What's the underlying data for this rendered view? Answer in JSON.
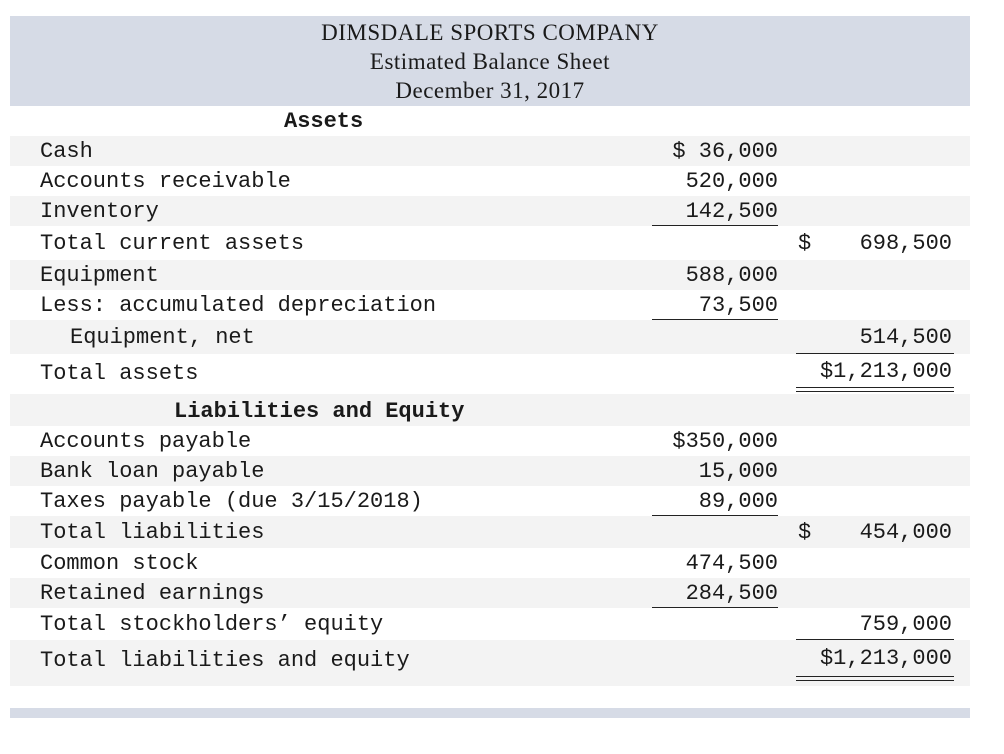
{
  "header": {
    "company": "DIMSDALE SPORTS COMPANY",
    "statement": "Estimated Balance Sheet",
    "date": "December 31, 2017"
  },
  "assets": {
    "heading": "Assets",
    "cash": {
      "label": "Cash",
      "amount": "$ 36,000"
    },
    "accounts_receivable": {
      "label": "Accounts receivable",
      "amount": "520,000"
    },
    "inventory": {
      "label": "Inventory",
      "amount": "142,500"
    },
    "total_current_assets": {
      "label": "Total current assets",
      "dollar": "$",
      "total": "698,500"
    },
    "equipment": {
      "label": "Equipment",
      "amount": "588,000"
    },
    "accum_depr": {
      "label": "Less: accumulated depreciation",
      "amount": "73,500"
    },
    "equipment_net": {
      "label": "Equipment, net",
      "total": "514,500"
    },
    "total_assets": {
      "label": "Total assets",
      "total": "$1,213,000"
    }
  },
  "liabilities": {
    "heading": "Liabilities and Equity",
    "accounts_payable": {
      "label": "Accounts payable",
      "amount": "$350,000"
    },
    "bank_loan": {
      "label": "Bank loan payable",
      "amount": "15,000"
    },
    "taxes_payable": {
      "label": "Taxes payable (due 3/15/2018)",
      "amount": "89,000"
    },
    "total_liabilities": {
      "label": "Total liabilities",
      "dollar": "$",
      "total": "454,000"
    },
    "common_stock": {
      "label": "Common stock",
      "amount": "474,500"
    },
    "retained_earnings": {
      "label": "Retained earnings",
      "amount": "284,500"
    },
    "total_equity": {
      "label": "Total stockholders’ equity",
      "total": "759,000"
    },
    "total_liab_equity": {
      "label": "Total liabilities and equity",
      "total": "$1,213,000"
    }
  }
}
